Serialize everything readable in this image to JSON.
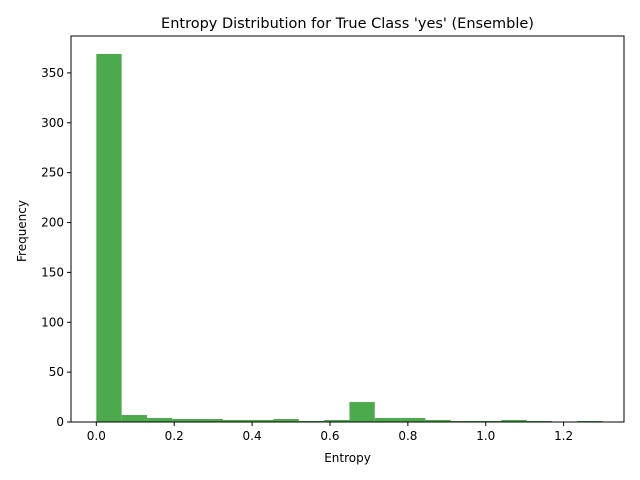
{
  "chart_data": {
    "type": "bar",
    "title": "Entropy Distribution for True Class 'yes' (Ensemble)",
    "xlabel": "Entropy",
    "ylabel": "Frequency",
    "bar_color": "#4caa4c",
    "xlim": [
      -0.065,
      1.355
    ],
    "ylim": [
      0,
      387
    ],
    "grid": false,
    "bins": [
      {
        "start": 0.0,
        "end": 0.065,
        "count": 369
      },
      {
        "start": 0.065,
        "end": 0.13,
        "count": 7
      },
      {
        "start": 0.13,
        "end": 0.195,
        "count": 4
      },
      {
        "start": 0.195,
        "end": 0.26,
        "count": 3
      },
      {
        "start": 0.26,
        "end": 0.325,
        "count": 3
      },
      {
        "start": 0.325,
        "end": 0.39,
        "count": 2
      },
      {
        "start": 0.39,
        "end": 0.455,
        "count": 2
      },
      {
        "start": 0.455,
        "end": 0.52,
        "count": 3
      },
      {
        "start": 0.52,
        "end": 0.585,
        "count": 1
      },
      {
        "start": 0.585,
        "end": 0.65,
        "count": 2
      },
      {
        "start": 0.65,
        "end": 0.715,
        "count": 20
      },
      {
        "start": 0.715,
        "end": 0.78,
        "count": 4
      },
      {
        "start": 0.78,
        "end": 0.845,
        "count": 4
      },
      {
        "start": 0.845,
        "end": 0.91,
        "count": 2
      },
      {
        "start": 0.91,
        "end": 0.975,
        "count": 1
      },
      {
        "start": 0.975,
        "end": 1.04,
        "count": 1
      },
      {
        "start": 1.04,
        "end": 1.105,
        "count": 2
      },
      {
        "start": 1.105,
        "end": 1.17,
        "count": 1
      },
      {
        "start": 1.17,
        "end": 1.235,
        "count": 0
      },
      {
        "start": 1.235,
        "end": 1.3,
        "count": 1
      }
    ],
    "x_ticks": [
      0.0,
      0.2,
      0.4,
      0.6,
      0.8,
      1.0,
      1.2
    ],
    "x_tick_labels": [
      "0.0",
      "0.2",
      "0.4",
      "0.6",
      "0.8",
      "1.0",
      "1.2"
    ],
    "y_ticks": [
      0,
      50,
      100,
      150,
      200,
      250,
      300,
      350
    ],
    "y_tick_labels": [
      "0",
      "50",
      "100",
      "150",
      "200",
      "250",
      "300",
      "350"
    ]
  }
}
